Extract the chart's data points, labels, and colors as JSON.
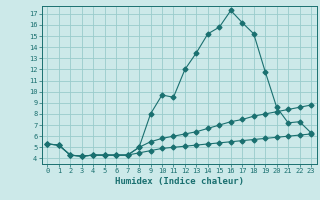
{
  "title": "",
  "xlabel": "Humidex (Indice chaleur)",
  "bg_color": "#cce9e9",
  "line_color": "#1a7070",
  "grid_color": "#99cccc",
  "xlim": [
    -0.5,
    23.5
  ],
  "ylim": [
    3.5,
    17.7
  ],
  "xticks": [
    0,
    1,
    2,
    3,
    4,
    5,
    6,
    7,
    8,
    9,
    10,
    11,
    12,
    13,
    14,
    15,
    16,
    17,
    18,
    19,
    20,
    21,
    22,
    23
  ],
  "yticks": [
    4,
    5,
    6,
    7,
    8,
    9,
    10,
    11,
    12,
    13,
    14,
    15,
    16,
    17
  ],
  "line1_x": [
    0,
    1,
    2,
    3,
    4,
    5,
    6,
    7,
    8,
    9,
    10,
    11,
    12,
    13,
    14,
    15,
    16,
    17,
    18,
    19,
    20,
    21,
    22,
    23
  ],
  "line1_y": [
    5.3,
    5.2,
    4.3,
    4.2,
    4.3,
    4.3,
    4.3,
    4.3,
    5.0,
    8.0,
    9.7,
    9.5,
    12.0,
    13.5,
    15.2,
    15.8,
    17.3,
    16.2,
    15.2,
    11.8,
    8.6,
    7.2,
    7.3,
    6.3
  ],
  "line2_x": [
    0,
    1,
    2,
    3,
    4,
    5,
    6,
    7,
    8,
    9,
    10,
    11,
    12,
    13,
    14,
    15,
    16,
    17,
    18,
    19,
    20,
    21,
    22,
    23
  ],
  "line2_y": [
    5.3,
    5.2,
    4.3,
    4.2,
    4.3,
    4.3,
    4.3,
    4.3,
    5.0,
    5.5,
    5.8,
    6.0,
    6.2,
    6.4,
    6.7,
    7.0,
    7.3,
    7.5,
    7.8,
    8.0,
    8.2,
    8.4,
    8.6,
    8.8
  ],
  "line3_x": [
    0,
    1,
    2,
    3,
    4,
    5,
    6,
    7,
    8,
    9,
    10,
    11,
    12,
    13,
    14,
    15,
    16,
    17,
    18,
    19,
    20,
    21,
    22,
    23
  ],
  "line3_y": [
    5.3,
    5.2,
    4.3,
    4.2,
    4.3,
    4.3,
    4.3,
    4.3,
    4.5,
    4.7,
    4.9,
    5.0,
    5.1,
    5.2,
    5.3,
    5.4,
    5.5,
    5.6,
    5.7,
    5.8,
    5.9,
    6.0,
    6.1,
    6.2
  ]
}
